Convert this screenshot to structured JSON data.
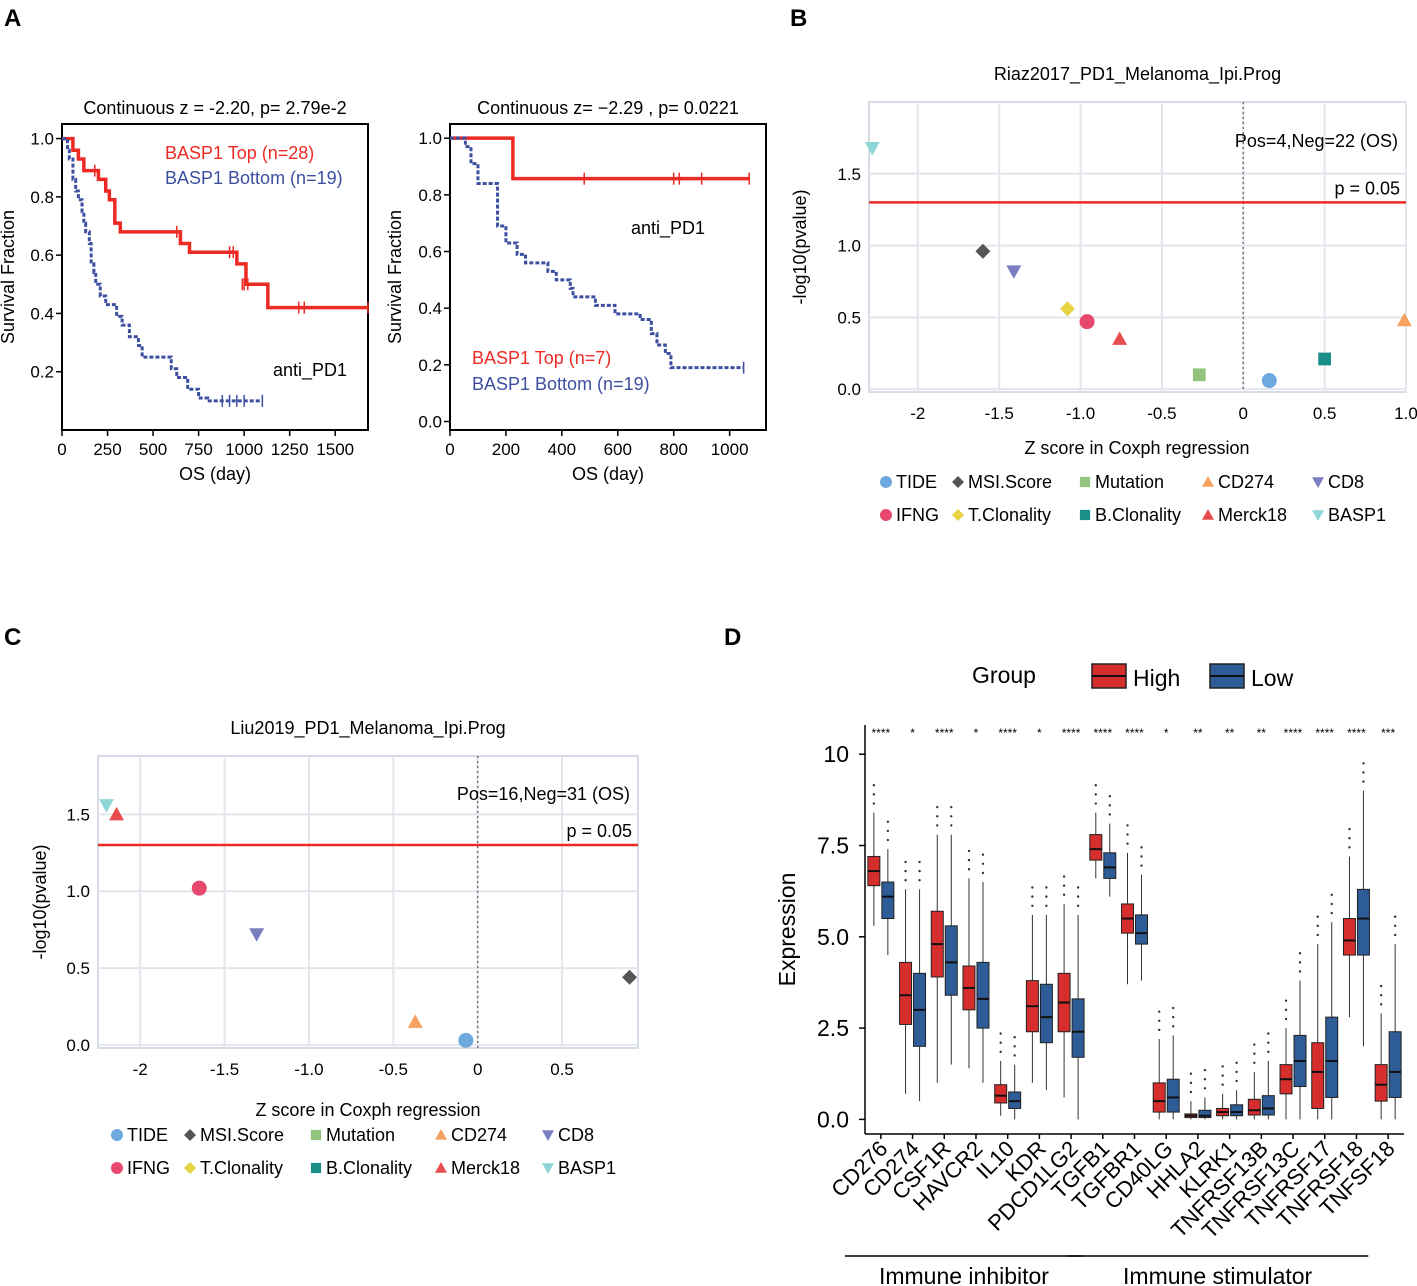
{
  "colors": {
    "red": "#ee2a24",
    "blue": "#3d4fa0",
    "ref_line": "#ee2a24",
    "TIDE": "#6fa8dc",
    "MSI.Score": "#555555",
    "Mutation": "#93c47d",
    "CD274": "#f6a15f",
    "CD8": "#7b7fc1",
    "IFNG": "#e8486d",
    "T.Clonality": "#e6d442",
    "B.Clonality": "#1a8f8a",
    "Merck18": "#e84d4d",
    "BASP1": "#8fd6d6",
    "box_high": "#d62d2d",
    "box_low": "#2e5c96"
  },
  "panel_labels": {
    "a": "A",
    "b": "B",
    "c": "C",
    "d": "D"
  },
  "chart_data": [
    {
      "id": "A1",
      "type": "line",
      "title": "Continuous z = -2.20, p= 2.79e-2",
      "xlabel": "OS (day)",
      "ylabel": "Survival Fraction",
      "annotation": "anti_PD1",
      "xlim": [
        0,
        1680
      ],
      "ylim": [
        0,
        1.05
      ],
      "xticks": [
        0,
        250,
        500,
        750,
        1000,
        1250,
        1500
      ],
      "xtick_labels": [
        "0",
        "250",
        "500",
        "750",
        "1000",
        "1250",
        "1500"
      ],
      "yticks": [
        0.2,
        0.4,
        0.6,
        0.8,
        1.0
      ],
      "ytick_labels": [
        "0.2",
        "0.4",
        "0.6",
        "0.8",
        "1.0"
      ],
      "series": [
        {
          "name": "BASP1 Top (n=28)",
          "color": "red",
          "dash": false,
          "steps": [
            [
              0,
              1.0
            ],
            [
              60,
              0.96
            ],
            [
              90,
              0.93
            ],
            [
              120,
              0.89
            ],
            [
              200,
              0.86
            ],
            [
              240,
              0.82
            ],
            [
              260,
              0.79
            ],
            [
              290,
              0.71
            ],
            [
              320,
              0.68
            ],
            [
              650,
              0.64
            ],
            [
              700,
              0.61
            ],
            [
              960,
              0.57
            ],
            [
              1010,
              0.5
            ],
            [
              1130,
              0.42
            ],
            [
              1680,
              0.42
            ]
          ],
          "censors": [
            [
              180,
              0.89
            ],
            [
              290,
              0.75
            ],
            [
              630,
              0.68
            ],
            [
              920,
              0.61
            ],
            [
              940,
              0.61
            ],
            [
              990,
              0.5
            ],
            [
              1000,
              0.5
            ],
            [
              1020,
              0.5
            ],
            [
              1300,
              0.42
            ],
            [
              1330,
              0.42
            ],
            [
              1680,
              0.42
            ]
          ]
        },
        {
          "name": "BASP1 Bottom (n=19)",
          "color": "blue",
          "dash": true,
          "steps": [
            [
              0,
              1.0
            ],
            [
              30,
              0.96
            ],
            [
              40,
              0.93
            ],
            [
              60,
              0.86
            ],
            [
              75,
              0.82
            ],
            [
              90,
              0.79
            ],
            [
              110,
              0.75
            ],
            [
              120,
              0.71
            ],
            [
              130,
              0.68
            ],
            [
              150,
              0.64
            ],
            [
              160,
              0.57
            ],
            [
              175,
              0.54
            ],
            [
              185,
              0.5
            ],
            [
              210,
              0.46
            ],
            [
              240,
              0.43
            ],
            [
              300,
              0.39
            ],
            [
              330,
              0.36
            ],
            [
              370,
              0.32
            ],
            [
              420,
              0.29
            ],
            [
              440,
              0.25
            ],
            [
              600,
              0.21
            ],
            [
              630,
              0.18
            ],
            [
              690,
              0.14
            ],
            [
              750,
              0.11
            ],
            [
              800,
              0.1
            ],
            [
              1100,
              0.1
            ]
          ],
          "censors": [
            [
              880,
              0.1
            ],
            [
              920,
              0.1
            ],
            [
              960,
              0.1
            ],
            [
              1000,
              0.1
            ],
            [
              1100,
              0.1
            ]
          ]
        }
      ]
    },
    {
      "id": "A2",
      "type": "line",
      "title": "Continuous z= −2.29 , p= 0.0221",
      "xlabel": "OS (day)",
      "ylabel": "Survival Fraction",
      "annotation": "anti_PD1",
      "xlim": [
        0,
        1130
      ],
      "ylim": [
        -0.03,
        1.05
      ],
      "xticks": [
        0,
        200,
        400,
        600,
        800,
        1000
      ],
      "xtick_labels": [
        "0",
        "200",
        "400",
        "600",
        "800",
        "1000"
      ],
      "yticks": [
        0.0,
        0.2,
        0.4,
        0.6,
        0.8,
        1.0
      ],
      "ytick_labels": [
        "0.0",
        "0.2",
        "0.4",
        "0.6",
        "0.8",
        "1.0"
      ],
      "series": [
        {
          "name": "BASP1 Top (n=7)",
          "color": "red",
          "dash": false,
          "steps": [
            [
              0,
              1.0
            ],
            [
              225,
              0.857
            ],
            [
              1070,
              0.857
            ]
          ],
          "censors": [
            [
              480,
              0.857
            ],
            [
              800,
              0.857
            ],
            [
              820,
              0.857
            ],
            [
              900,
              0.857
            ],
            [
              1070,
              0.857
            ]
          ]
        },
        {
          "name": "BASP1 Bottom (n=19)",
          "color": "blue",
          "dash": true,
          "steps": [
            [
              0,
              1.0
            ],
            [
              55,
              0.97
            ],
            [
              75,
              0.91
            ],
            [
              100,
              0.84
            ],
            [
              170,
              0.69
            ],
            [
              200,
              0.63
            ],
            [
              240,
              0.59
            ],
            [
              270,
              0.56
            ],
            [
              350,
              0.53
            ],
            [
              380,
              0.5
            ],
            [
              430,
              0.47
            ],
            [
              440,
              0.44
            ],
            [
              520,
              0.41
            ],
            [
              590,
              0.38
            ],
            [
              680,
              0.36
            ],
            [
              720,
              0.31
            ],
            [
              740,
              0.27
            ],
            [
              770,
              0.24
            ],
            [
              790,
              0.19
            ],
            [
              1050,
              0.19
            ]
          ],
          "censors": [
            [
              1050,
              0.19
            ]
          ]
        }
      ]
    },
    {
      "id": "B",
      "type": "scatter",
      "title": "Riaz2017_PD1_Melanoma_Ipi.Prog",
      "xlabel": "Z score in Coxph regression",
      "ylabel": "-log10(pvalue)",
      "xlim": [
        -2.3,
        1.0
      ],
      "ylim": [
        -0.02,
        2.0
      ],
      "xticks": [
        -2,
        -1.5,
        -1,
        -0.5,
        0,
        0.5,
        1.0
      ],
      "xtick_labels": [
        "-2",
        "-1.5",
        "-1.0",
        "-0.5",
        "0",
        "0.5",
        "1.0"
      ],
      "yticks": [
        0.0,
        0.5,
        1.0,
        1.5
      ],
      "ytick_labels": [
        "0.0",
        "0.5",
        "1.0",
        "1.5"
      ],
      "threshold": 1.301,
      "threshold_label": "p = 0.05",
      "note": "Pos=4,Neg=22 (OS)",
      "points": [
        {
          "name": "BASP1",
          "x": -2.28,
          "y": 1.68
        },
        {
          "name": "MSI.Score",
          "x": -1.6,
          "y": 0.96
        },
        {
          "name": "CD8",
          "x": -1.41,
          "y": 0.82
        },
        {
          "name": "T.Clonality",
          "x": -1.08,
          "y": 0.56
        },
        {
          "name": "IFNG",
          "x": -0.96,
          "y": 0.47
        },
        {
          "name": "Merck18",
          "x": -0.76,
          "y": 0.35
        },
        {
          "name": "Mutation",
          "x": -0.27,
          "y": 0.1
        },
        {
          "name": "TIDE",
          "x": 0.16,
          "y": 0.06
        },
        {
          "name": "B.Clonality",
          "x": 0.5,
          "y": 0.21
        },
        {
          "name": "CD274",
          "x": 0.99,
          "y": 0.48
        }
      ]
    },
    {
      "id": "C",
      "type": "scatter",
      "title": "Liu2019_PD1_Melanoma_Ipi.Prog",
      "xlabel": "Z score in Coxph regression",
      "ylabel": "-log10(pvalue)",
      "xlim": [
        -2.25,
        0.95
      ],
      "ylim": [
        -0.02,
        1.88
      ],
      "xticks": [
        -2,
        -1.5,
        -1,
        -0.5,
        0,
        0.5
      ],
      "xtick_labels": [
        "-2",
        "-1.5",
        "-1.0",
        "-0.5",
        "0",
        "0.5"
      ],
      "yticks": [
        0.0,
        0.5,
        1.0,
        1.5
      ],
      "ytick_labels": [
        "0.0",
        "0.5",
        "1.0",
        "1.5"
      ],
      "threshold": 1.301,
      "threshold_label": "p = 0.05",
      "note": "Pos=16,Neg=31 (OS)",
      "points": [
        {
          "name": "BASP1",
          "x": -2.2,
          "y": 1.56
        },
        {
          "name": "Merck18",
          "x": -2.14,
          "y": 1.5
        },
        {
          "name": "IFNG",
          "x": -1.65,
          "y": 1.02
        },
        {
          "name": "CD8",
          "x": -1.31,
          "y": 0.72
        },
        {
          "name": "CD274",
          "x": -0.37,
          "y": 0.15
        },
        {
          "name": "TIDE",
          "x": -0.07,
          "y": 0.03
        },
        {
          "name": "MSI.Score",
          "x": 0.9,
          "y": 0.44
        }
      ]
    },
    {
      "id": "D",
      "type": "box",
      "xlabel": "",
      "ylabel": "Expression",
      "ylim": [
        -0.4,
        10.8
      ],
      "yticks": [
        0.0,
        2.5,
        5.0,
        7.5,
        10
      ],
      "ytick_labels": [
        "0.0",
        "2.5",
        "5.0",
        "7.5",
        "10"
      ],
      "legend": {
        "title": "Group",
        "entries": [
          "High",
          "Low"
        ]
      },
      "groups": [
        {
          "label": "Immune inhibitor",
          "from": 0,
          "to": 6
        },
        {
          "label": "Immune stimulator",
          "from": 7,
          "to": 15
        }
      ],
      "categories": [
        "CD276",
        "CD274",
        "CSF1R",
        "HAVCR2",
        "IL10",
        "KDR",
        "PDCD1LG2",
        "TGFB1",
        "TGFBR1",
        "CD40LG",
        "HHLA2",
        "KLRK1",
        "TNFRSF13B",
        "TNFRSF13C",
        "TNFRSF17",
        "TNFRSF18",
        "TNFSF18"
      ],
      "significance": [
        "****",
        "*",
        "****",
        "*",
        "****",
        "*",
        "****",
        "****",
        "****",
        "*",
        "**",
        "**",
        "**",
        "****",
        "****",
        "****",
        "***"
      ],
      "series": [
        {
          "name": "High",
          "boxes": [
            [
              5.3,
              6.4,
              6.8,
              7.2,
              8.4
            ],
            [
              0.7,
              2.6,
              3.4,
              4.3,
              6.3
            ],
            [
              1.0,
              3.9,
              4.8,
              5.7,
              7.8
            ],
            [
              1.4,
              3.0,
              3.6,
              4.2,
              6.6
            ],
            [
              0.1,
              0.45,
              0.65,
              0.95,
              1.6
            ],
            [
              1.0,
              2.4,
              3.1,
              3.8,
              5.6
            ],
            [
              0.6,
              2.4,
              3.2,
              4.0,
              5.9
            ],
            [
              6.6,
              7.1,
              7.4,
              7.8,
              8.4
            ],
            [
              3.7,
              5.1,
              5.5,
              5.9,
              7.3
            ],
            [
              0.0,
              0.2,
              0.5,
              1.0,
              2.2
            ],
            [
              0.0,
              0.05,
              0.1,
              0.15,
              0.5
            ],
            [
              0.0,
              0.1,
              0.2,
              0.3,
              0.7
            ],
            [
              0.0,
              0.12,
              0.25,
              0.55,
              1.3
            ],
            [
              0.0,
              0.7,
              1.1,
              1.5,
              2.5
            ],
            [
              0.0,
              0.3,
              1.3,
              2.1,
              4.8
            ],
            [
              2.8,
              4.5,
              4.9,
              5.5,
              7.2
            ],
            [
              0.0,
              0.5,
              0.95,
              1.5,
              2.9
            ]
          ]
        },
        {
          "name": "Low",
          "boxes": [
            [
              4.5,
              5.5,
              6.1,
              6.5,
              7.4
            ],
            [
              0.5,
              2.0,
              3.0,
              4.0,
              6.3
            ],
            [
              1.5,
              3.4,
              4.3,
              5.3,
              7.8
            ],
            [
              1.0,
              2.5,
              3.3,
              4.3,
              6.5
            ],
            [
              0.0,
              0.3,
              0.5,
              0.75,
              1.5
            ],
            [
              0.8,
              2.1,
              2.8,
              3.7,
              5.6
            ],
            [
              0.0,
              1.7,
              2.4,
              3.3,
              5.6
            ],
            [
              6.1,
              6.6,
              6.9,
              7.3,
              8.1
            ],
            [
              3.8,
              4.8,
              5.1,
              5.6,
              6.7
            ],
            [
              0.0,
              0.2,
              0.6,
              1.1,
              2.3
            ],
            [
              0.0,
              0.05,
              0.1,
              0.25,
              0.6
            ],
            [
              0.0,
              0.1,
              0.2,
              0.4,
              0.8
            ],
            [
              0.0,
              0.12,
              0.3,
              0.65,
              1.6
            ],
            [
              0.0,
              0.9,
              1.6,
              2.3,
              3.8
            ],
            [
              0.0,
              0.6,
              1.6,
              2.8,
              5.4
            ],
            [
              2.0,
              4.5,
              5.5,
              6.3,
              9.0
            ],
            [
              0.0,
              0.6,
              1.3,
              2.4,
              4.8
            ]
          ]
        }
      ]
    }
  ]
}
